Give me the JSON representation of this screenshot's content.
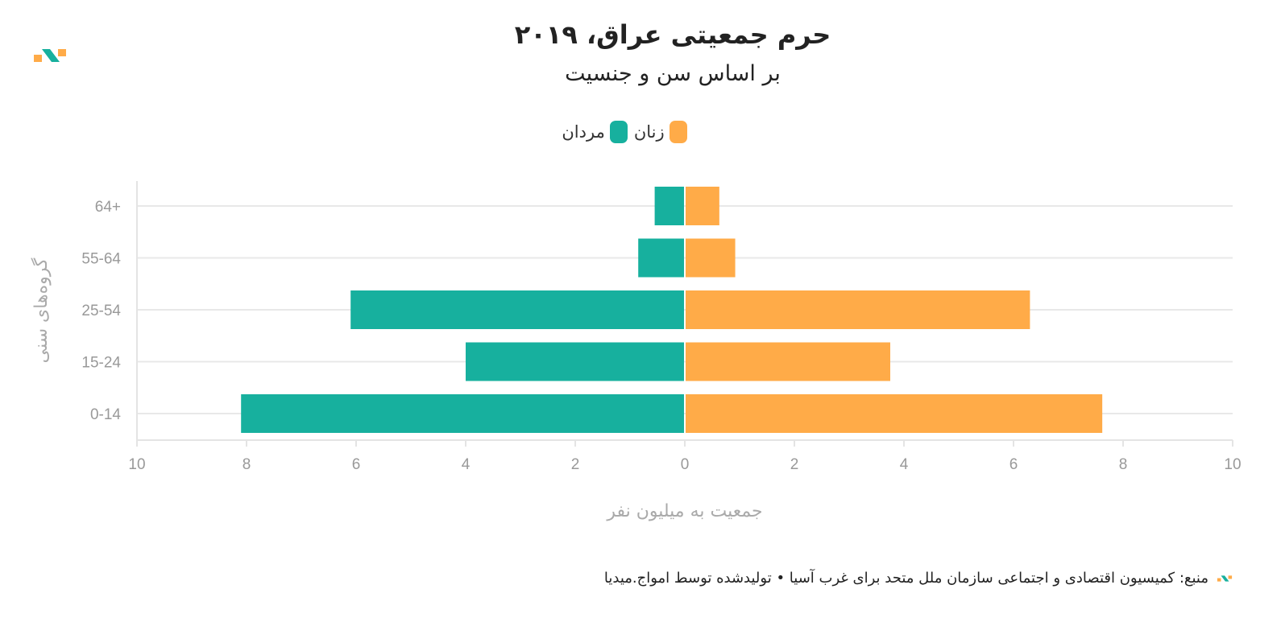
{
  "header": {
    "title": "حرم جمعیتی عراق، ۲۰۱۹",
    "subtitle": "بر اساس سن و جنسیت"
  },
  "legend": {
    "women_label": "زنان",
    "men_label": "مردان"
  },
  "colors": {
    "men": "#17b09e",
    "women": "#ffab48",
    "grid": "#e8e8e8"
  },
  "footer": {
    "source": "منبع: کمیسیون اقتصادی و اجتماعی سازمان ملل متحد برای غرب آسیا • تولیدشده توسط امواج.میدیا"
  },
  "chart_data": {
    "type": "bar",
    "orientation": "horizontal-population-pyramid",
    "categories": [
      "0-14",
      "15-24",
      "25-54",
      "55-64",
      "64+"
    ],
    "series": [
      {
        "name": "مردان",
        "side": "left",
        "values": [
          8.1,
          4.0,
          6.1,
          0.85,
          0.55
        ]
      },
      {
        "name": "زنان",
        "side": "right",
        "values": [
          7.62,
          3.75,
          6.3,
          0.92,
          0.63
        ]
      }
    ],
    "xlim": [
      -10,
      10
    ],
    "xticks": [
      -10,
      -8,
      -6,
      -4,
      -2,
      0,
      2,
      4,
      6,
      8,
      10
    ],
    "xlabel": "جمعیت به میلیون نفر",
    "ylabel": "گروه‌های سنی",
    "grid": true,
    "legend_position": "top-center"
  }
}
